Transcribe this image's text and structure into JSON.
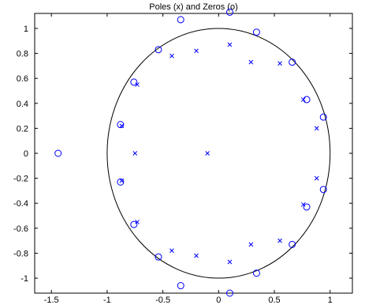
{
  "chart_data": {
    "type": "scatter",
    "title": "Poles (x) and Zeros (o)",
    "xlabel": "",
    "ylabel": "",
    "xlim": [
      -1.65,
      1.2
    ],
    "ylim": [
      -1.12,
      1.12
    ],
    "x_ticks": [
      -1.5,
      -1,
      -0.5,
      0,
      0.5,
      1
    ],
    "x_tick_labels": [
      "-1.5",
      "-1",
      "-0.5",
      "0",
      "0.5",
      "1"
    ],
    "y_ticks": [
      1,
      0.8,
      0.6,
      0.4,
      0.2,
      0,
      -0.2,
      -0.4,
      -0.6,
      -0.8,
      -1
    ],
    "y_tick_labels": [
      "1",
      "0.8",
      "0.6",
      "0.4",
      "0.2",
      "0",
      "-0.2",
      "-0.4",
      "-0.6",
      "-0.8",
      "-1"
    ],
    "grid": false,
    "unit_circle": {
      "center": [
        0,
        0
      ],
      "radius": 1
    },
    "colors": {
      "markers": "#0000ff",
      "circle": "#000000",
      "axes": "#000000"
    },
    "series": [
      {
        "marker": "x",
        "points": [
          [
            -0.1,
            0.0
          ],
          [
            -0.75,
            0.0
          ],
          [
            -0.87,
            0.22
          ],
          [
            -0.87,
            -0.22
          ],
          [
            -0.73,
            0.55
          ],
          [
            -0.73,
            -0.55
          ],
          [
            -0.42,
            0.78
          ],
          [
            -0.42,
            -0.78
          ],
          [
            -0.2,
            0.82
          ],
          [
            -0.2,
            -0.82
          ],
          [
            0.1,
            0.87
          ],
          [
            0.1,
            -0.87
          ],
          [
            0.29,
            0.73
          ],
          [
            0.29,
            -0.73
          ],
          [
            0.55,
            0.72
          ],
          [
            0.55,
            -0.7
          ],
          [
            0.76,
            0.43
          ],
          [
            0.76,
            -0.41
          ],
          [
            0.88,
            0.2
          ],
          [
            0.88,
            -0.2
          ]
        ]
      },
      {
        "marker": "o",
        "points": [
          [
            -1.44,
            0.0
          ],
          [
            -0.88,
            0.23
          ],
          [
            -0.88,
            -0.23
          ],
          [
            -0.76,
            0.57
          ],
          [
            -0.76,
            -0.57
          ],
          [
            -0.54,
            0.83
          ],
          [
            -0.54,
            -0.83
          ],
          [
            -0.34,
            1.07
          ],
          [
            -0.34,
            -1.06
          ],
          [
            0.1,
            1.13
          ],
          [
            0.1,
            -1.12
          ],
          [
            0.34,
            0.97
          ],
          [
            0.34,
            -0.96
          ],
          [
            0.66,
            0.73
          ],
          [
            0.66,
            -0.73
          ],
          [
            0.79,
            0.43
          ],
          [
            0.79,
            -0.43
          ],
          [
            0.94,
            0.29
          ],
          [
            0.94,
            -0.29
          ]
        ]
      }
    ]
  }
}
